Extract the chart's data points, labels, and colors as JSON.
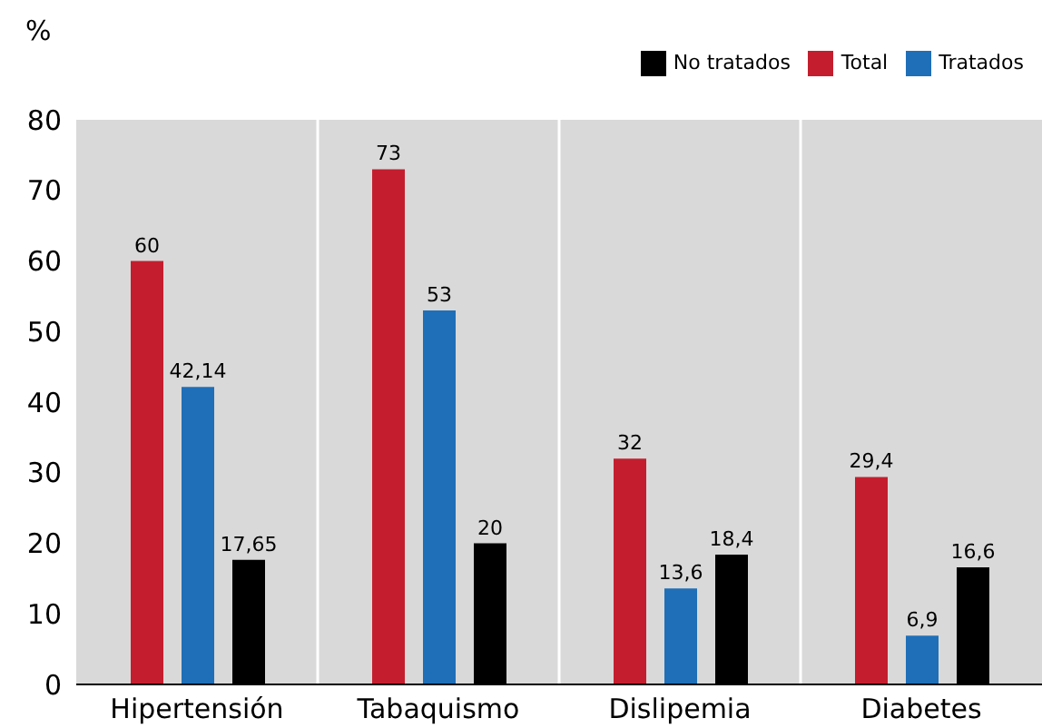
{
  "chart_data": {
    "type": "bar",
    "ylabel": "%",
    "categories": [
      "Hipertensión",
      "Tabaquismo",
      "Dislipemia",
      "Diabetes"
    ],
    "series": [
      {
        "name": "Total",
        "color": "#c41e2e",
        "values": [
          60,
          73,
          32,
          29.4
        ],
        "value_labels": [
          "60",
          "73",
          "32",
          "29,4"
        ]
      },
      {
        "name": "Tratados",
        "color": "#1f6fb8",
        "values": [
          42.14,
          53,
          13.6,
          6.9
        ],
        "value_labels": [
          "42,14",
          "53",
          "13,6",
          "6,9"
        ]
      },
      {
        "name": "No tratados",
        "color": "#000000",
        "values": [
          17.65,
          20,
          18.4,
          16.6
        ],
        "value_labels": [
          "17,65",
          "20",
          "18,4",
          "16,6"
        ]
      }
    ],
    "ylim": [
      0,
      80
    ],
    "yticks": [
      0,
      10,
      20,
      30,
      40,
      50,
      60,
      70,
      80
    ],
    "grid": "x",
    "legend": "top right"
  }
}
